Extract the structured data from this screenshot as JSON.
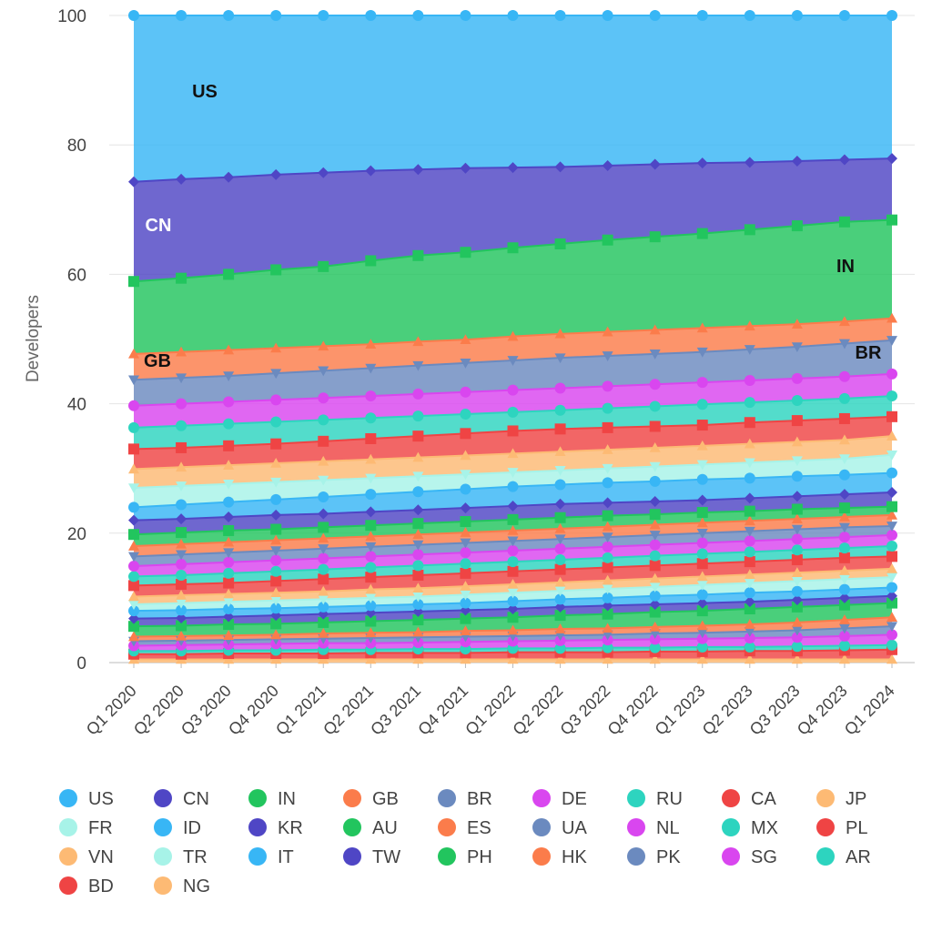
{
  "chart_data": {
    "type": "area",
    "stacked": true,
    "normalized_percent": true,
    "ylabel": "Developers",
    "ylim": [
      0,
      100
    ],
    "yticks": [
      0,
      20,
      40,
      60,
      80,
      100
    ],
    "grid": true,
    "legend_position": "bottom",
    "categories": [
      "Q1 2020",
      "Q2 2020",
      "Q3 2020",
      "Q4 2020",
      "Q1 2021",
      "Q2 2021",
      "Q3 2021",
      "Q4 2021",
      "Q1 2022",
      "Q2 2022",
      "Q3 2022",
      "Q4 2022",
      "Q1 2023",
      "Q2 2023",
      "Q3 2023",
      "Q4 2023",
      "Q1 2024"
    ],
    "cumulative_tops_note_free": true,
    "series": [
      {
        "name": "NG",
        "color": "#fdba74",
        "marker": "triangle-up",
        "cumulative": [
          0.5,
          0.5,
          0.5,
          0.5,
          0.5,
          0.5,
          0.5,
          0.5,
          0.5,
          0.5,
          0.5,
          0.5,
          0.5,
          0.5,
          0.5,
          0.5,
          0.5
        ]
      },
      {
        "name": "BD",
        "color": "#ef4444",
        "marker": "square",
        "cumulative": [
          1.3,
          1.3,
          1.4,
          1.4,
          1.4,
          1.5,
          1.5,
          1.5,
          1.6,
          1.6,
          1.6,
          1.7,
          1.7,
          1.8,
          1.8,
          1.9,
          2.0
        ]
      },
      {
        "name": "AR",
        "color": "#2dd4bf",
        "marker": "circle",
        "cumulative": [
          1.8,
          1.8,
          1.9,
          1.9,
          2.0,
          2.0,
          2.1,
          2.1,
          2.2,
          2.2,
          2.3,
          2.3,
          2.4,
          2.4,
          2.5,
          2.6,
          2.7
        ]
      },
      {
        "name": "SG",
        "color": "#d946ef",
        "marker": "circle",
        "cumulative": [
          2.6,
          2.7,
          2.8,
          2.9,
          3.0,
          3.0,
          3.1,
          3.2,
          3.3,
          3.4,
          3.5,
          3.6,
          3.7,
          3.8,
          3.9,
          4.1,
          4.3
        ]
      },
      {
        "name": "PK",
        "color": "#6b8abf",
        "marker": "triangle-down",
        "cumulative": [
          3.3,
          3.4,
          3.5,
          3.6,
          3.7,
          3.8,
          3.9,
          4.0,
          4.1,
          4.2,
          4.3,
          4.5,
          4.6,
          4.8,
          5.0,
          5.3,
          5.6
        ]
      },
      {
        "name": "HK",
        "color": "#fb7c4b",
        "marker": "triangle-up",
        "cumulative": [
          4.0,
          4.1,
          4.2,
          4.3,
          4.5,
          4.6,
          4.7,
          4.9,
          5.0,
          5.2,
          5.3,
          5.5,
          5.7,
          5.9,
          6.2,
          6.6,
          7.0
        ]
      },
      {
        "name": "PH",
        "color": "#22c55e",
        "marker": "square",
        "cumulative": [
          5.6,
          5.7,
          5.9,
          6.0,
          6.2,
          6.4,
          6.6,
          6.8,
          7.0,
          7.3,
          7.5,
          7.8,
          8.0,
          8.3,
          8.6,
          8.9,
          9.2
        ]
      },
      {
        "name": "TW",
        "color": "#4f46c5",
        "marker": "diamond",
        "cumulative": [
          6.8,
          6.9,
          7.1,
          7.3,
          7.5,
          7.7,
          7.9,
          8.1,
          8.3,
          8.6,
          8.8,
          9.0,
          9.2,
          9.4,
          9.7,
          10.0,
          10.3
        ]
      },
      {
        "name": "IT",
        "color": "#38b6f5",
        "marker": "circle",
        "cumulative": [
          8.0,
          8.1,
          8.3,
          8.4,
          8.6,
          8.8,
          9.0,
          9.2,
          9.5,
          9.8,
          10.0,
          10.3,
          10.5,
          10.8,
          11.0,
          11.3,
          11.6
        ]
      },
      {
        "name": "TR",
        "color": "#a7f3e8",
        "marker": "triangle-down",
        "cumulative": [
          9.0,
          9.2,
          9.4,
          9.6,
          9.8,
          10.0,
          10.2,
          10.5,
          10.8,
          11.1,
          11.4,
          11.7,
          12.0,
          12.3,
          12.6,
          12.9,
          13.2
        ]
      },
      {
        "name": "VN",
        "color": "#fdba74",
        "marker": "triangle-up",
        "cumulative": [
          10.2,
          10.4,
          10.6,
          10.8,
          11.0,
          11.3,
          11.5,
          11.8,
          12.1,
          12.4,
          12.7,
          13.0,
          13.3,
          13.6,
          13.9,
          14.2,
          14.5
        ]
      },
      {
        "name": "PL",
        "color": "#ef4444",
        "marker": "square",
        "cumulative": [
          11.9,
          12.1,
          12.3,
          12.6,
          12.9,
          13.2,
          13.5,
          13.8,
          14.1,
          14.4,
          14.7,
          15.0,
          15.3,
          15.6,
          15.9,
          16.2,
          16.4
        ]
      },
      {
        "name": "MX",
        "color": "#2dd4bf",
        "marker": "circle",
        "cumulative": [
          13.3,
          13.5,
          13.8,
          14.1,
          14.4,
          14.7,
          15.0,
          15.3,
          15.6,
          15.9,
          16.2,
          16.5,
          16.8,
          17.1,
          17.4,
          17.7,
          18.0
        ]
      },
      {
        "name": "NL",
        "color": "#d946ef",
        "marker": "circle",
        "cumulative": [
          14.9,
          15.2,
          15.5,
          15.8,
          16.1,
          16.4,
          16.7,
          17.0,
          17.3,
          17.6,
          17.9,
          18.2,
          18.5,
          18.8,
          19.1,
          19.4,
          19.7
        ]
      },
      {
        "name": "UA",
        "color": "#6b8abf",
        "marker": "triangle-down",
        "cumulative": [
          16.4,
          16.7,
          17.0,
          17.3,
          17.6,
          17.9,
          18.2,
          18.5,
          18.8,
          19.1,
          19.4,
          19.7,
          20.0,
          20.3,
          20.6,
          20.9,
          21.1
        ]
      },
      {
        "name": "ES",
        "color": "#fb7c4b",
        "marker": "triangle-up",
        "cumulative": [
          18.0,
          18.3,
          18.6,
          18.9,
          19.2,
          19.5,
          19.8,
          20.1,
          20.4,
          20.7,
          21.0,
          21.3,
          21.6,
          21.9,
          22.2,
          22.5,
          22.8
        ]
      },
      {
        "name": "AU",
        "color": "#22c55e",
        "marker": "square",
        "cumulative": [
          19.8,
          20.1,
          20.4,
          20.6,
          20.9,
          21.2,
          21.5,
          21.8,
          22.1,
          22.4,
          22.7,
          22.9,
          23.2,
          23.4,
          23.7,
          23.9,
          24.1
        ]
      },
      {
        "name": "KR",
        "color": "#4f46c5",
        "marker": "diamond",
        "cumulative": [
          22.0,
          22.2,
          22.5,
          22.8,
          23.0,
          23.3,
          23.6,
          23.9,
          24.2,
          24.5,
          24.7,
          24.9,
          25.1,
          25.4,
          25.7,
          26.0,
          26.3
        ]
      },
      {
        "name": "ID",
        "color": "#38b6f5",
        "marker": "circle",
        "cumulative": [
          24.0,
          24.4,
          24.8,
          25.2,
          25.6,
          26.0,
          26.4,
          26.8,
          27.2,
          27.5,
          27.8,
          28.0,
          28.3,
          28.5,
          28.8,
          29.0,
          29.3
        ]
      },
      {
        "name": "FR",
        "color": "#a7f3e8",
        "marker": "triangle-down",
        "cumulative": [
          27.0,
          27.3,
          27.6,
          27.9,
          28.2,
          28.5,
          28.8,
          29.1,
          29.4,
          29.7,
          30.0,
          30.3,
          30.6,
          30.9,
          31.2,
          31.5,
          32.1
        ]
      },
      {
        "name": "JP",
        "color": "#fdba74",
        "marker": "triangle-up",
        "cumulative": [
          29.9,
          30.2,
          30.5,
          30.8,
          31.1,
          31.4,
          31.7,
          32.0,
          32.3,
          32.6,
          32.9,
          33.2,
          33.5,
          33.8,
          34.1,
          34.4,
          35.0
        ]
      },
      {
        "name": "CA",
        "color": "#ef4444",
        "marker": "square",
        "cumulative": [
          33.0,
          33.2,
          33.5,
          33.8,
          34.2,
          34.6,
          35.0,
          35.4,
          35.8,
          36.1,
          36.3,
          36.5,
          36.7,
          37.1,
          37.4,
          37.7,
          38.0
        ]
      },
      {
        "name": "RU",
        "color": "#2dd4bf",
        "marker": "circle",
        "cumulative": [
          36.3,
          36.6,
          36.9,
          37.2,
          37.5,
          37.8,
          38.1,
          38.4,
          38.7,
          39.0,
          39.3,
          39.6,
          39.9,
          40.2,
          40.5,
          40.8,
          41.2
        ]
      },
      {
        "name": "DE",
        "color": "#d946ef",
        "marker": "circle",
        "cumulative": [
          39.7,
          40.0,
          40.3,
          40.6,
          40.9,
          41.2,
          41.5,
          41.8,
          42.1,
          42.4,
          42.7,
          43.0,
          43.3,
          43.6,
          43.9,
          44.2,
          44.6
        ]
      },
      {
        "name": "BR",
        "color": "#6b8abf",
        "marker": "triangle-down",
        "cumulative": [
          43.7,
          44.0,
          44.3,
          44.7,
          45.1,
          45.5,
          45.9,
          46.3,
          46.7,
          47.1,
          47.4,
          47.7,
          48.0,
          48.4,
          48.8,
          49.3,
          49.8
        ]
      },
      {
        "name": "GB",
        "color": "#fb7c4b",
        "marker": "triangle-up",
        "cumulative": [
          47.7,
          48.0,
          48.3,
          48.6,
          48.9,
          49.2,
          49.6,
          49.9,
          50.4,
          50.8,
          51.1,
          51.4,
          51.7,
          52.0,
          52.3,
          52.7,
          53.2
        ]
      },
      {
        "name": "IN",
        "color": "#22c55e",
        "marker": "square",
        "cumulative": [
          58.9,
          59.4,
          60.0,
          60.7,
          61.2,
          62.1,
          62.9,
          63.4,
          64.1,
          64.7,
          65.3,
          65.8,
          66.3,
          66.9,
          67.5,
          68.1,
          68.4
        ]
      },
      {
        "name": "CN",
        "color": "#4f46c5",
        "marker": "diamond",
        "cumulative": [
          74.3,
          74.7,
          75.0,
          75.4,
          75.7,
          76.0,
          76.2,
          76.4,
          76.5,
          76.6,
          76.8,
          77.0,
          77.2,
          77.3,
          77.5,
          77.7,
          77.9
        ]
      },
      {
        "name": "US",
        "color": "#38b6f5",
        "marker": "circle",
        "cumulative": [
          100,
          100,
          100,
          100,
          100,
          100,
          100,
          100,
          100,
          100,
          100,
          100,
          100,
          100,
          100,
          100,
          100
        ]
      }
    ],
    "area_labels": [
      {
        "text": "US",
        "series": "US"
      },
      {
        "text": "CN",
        "series": "CN"
      },
      {
        "text": "IN",
        "series": "IN"
      },
      {
        "text": "GB",
        "series": "GB"
      },
      {
        "text": "BR",
        "series": "BR"
      }
    ],
    "legend": [
      {
        "name": "US",
        "color": "#38b6f5"
      },
      {
        "name": "CN",
        "color": "#4f46c5"
      },
      {
        "name": "IN",
        "color": "#22c55e"
      },
      {
        "name": "GB",
        "color": "#fb7c4b"
      },
      {
        "name": "BR",
        "color": "#6b8abf"
      },
      {
        "name": "DE",
        "color": "#d946ef"
      },
      {
        "name": "RU",
        "color": "#2dd4bf"
      },
      {
        "name": "CA",
        "color": "#ef4444"
      },
      {
        "name": "JP",
        "color": "#fdba74"
      },
      {
        "name": "FR",
        "color": "#a7f3e8"
      },
      {
        "name": "ID",
        "color": "#38b6f5"
      },
      {
        "name": "KR",
        "color": "#4f46c5"
      },
      {
        "name": "AU",
        "color": "#22c55e"
      },
      {
        "name": "ES",
        "color": "#fb7c4b"
      },
      {
        "name": "UA",
        "color": "#6b8abf"
      },
      {
        "name": "NL",
        "color": "#d946ef"
      },
      {
        "name": "MX",
        "color": "#2dd4bf"
      },
      {
        "name": "PL",
        "color": "#ef4444"
      },
      {
        "name": "VN",
        "color": "#fdba74"
      },
      {
        "name": "TR",
        "color": "#a7f3e8"
      },
      {
        "name": "IT",
        "color": "#38b6f5"
      },
      {
        "name": "TW",
        "color": "#4f46c5"
      },
      {
        "name": "PH",
        "color": "#22c55e"
      },
      {
        "name": "HK",
        "color": "#fb7c4b"
      },
      {
        "name": "PK",
        "color": "#6b8abf"
      },
      {
        "name": "SG",
        "color": "#d946ef"
      },
      {
        "name": "AR",
        "color": "#2dd4bf"
      },
      {
        "name": "BD",
        "color": "#ef4444"
      },
      {
        "name": "NG",
        "color": "#fdba74"
      }
    ]
  }
}
